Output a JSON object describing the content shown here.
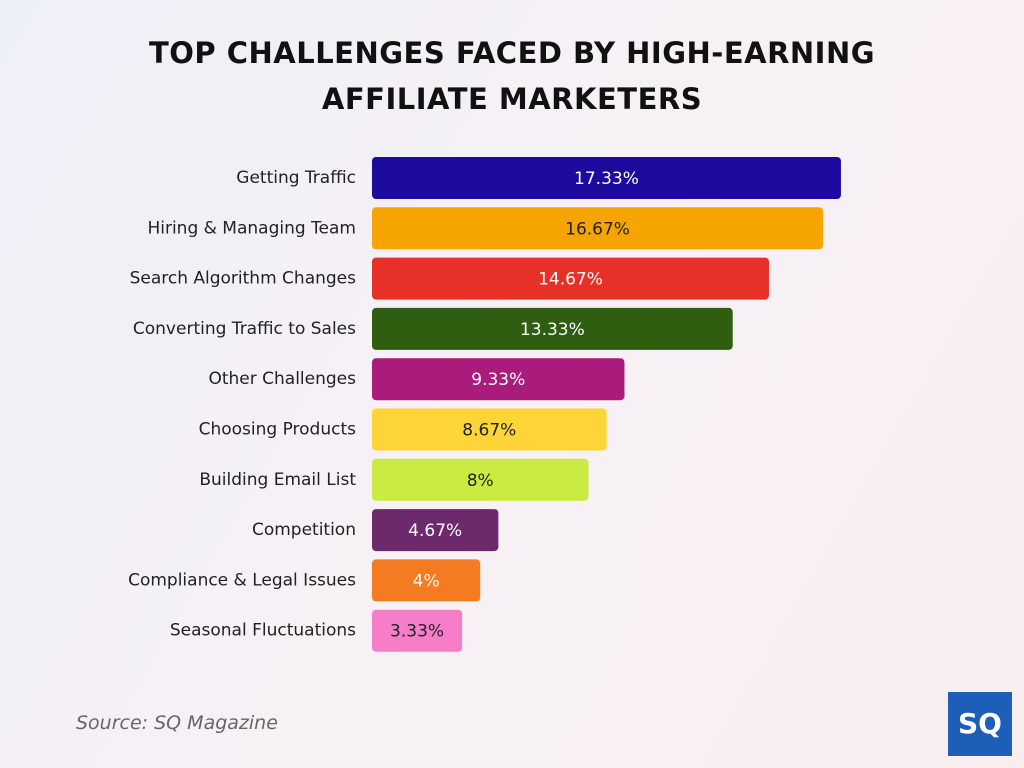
{
  "chart_data": {
    "type": "bar",
    "orientation": "horizontal",
    "title": "TOP CHALLENGES FACED BY HIGH-EARNING AFFILIATE MARKETERS",
    "categories": [
      "Getting Traffic",
      "Hiring & Managing Team",
      "Search Algorithm Changes",
      "Converting Traffic to Sales",
      "Other Challenges",
      "Choosing Products",
      "Building Email List",
      "Competition",
      "Compliance & Legal Issues",
      "Seasonal Fluctuations"
    ],
    "values": [
      17.33,
      16.67,
      14.67,
      13.33,
      9.33,
      8.67,
      8,
      4.67,
      4,
      3.33
    ],
    "value_labels": [
      "17.33%",
      "16.67%",
      "14.67%",
      "13.33%",
      "9.33%",
      "8.67%",
      "8%",
      "4.67%",
      "4%",
      "3.33%"
    ],
    "colors": [
      "#1c0b9e",
      "#f6a400",
      "#e73027",
      "#2f5e10",
      "#a91c7b",
      "#fdd538",
      "#cbeb43",
      "#6c2a6c",
      "#f47b22",
      "#f77dc8"
    ],
    "source": "Source: SQ Magazine",
    "logo": "SQ"
  }
}
